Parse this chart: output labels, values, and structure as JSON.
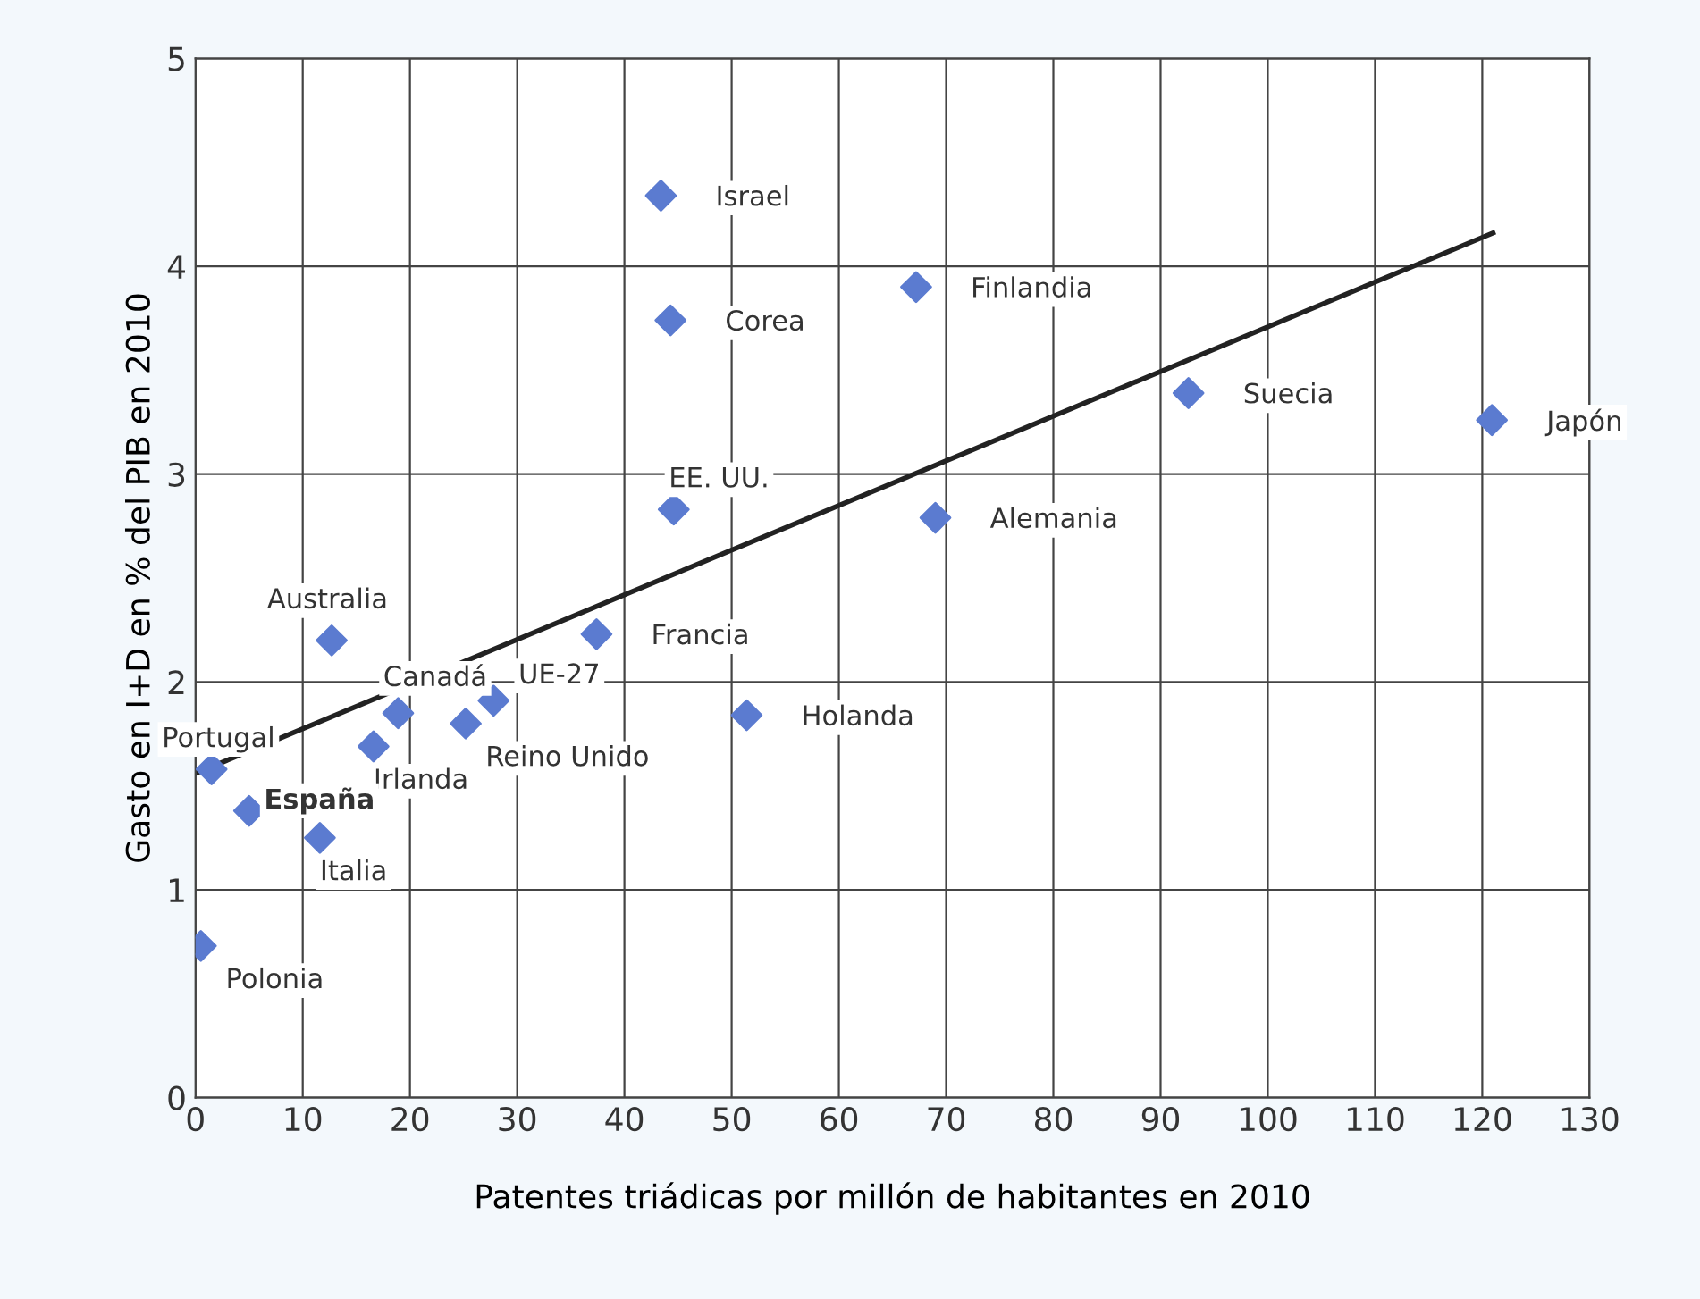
{
  "chart_data": {
    "type": "scatter",
    "xlabel": "Patentes triádicas por millón de habitantes en 2010",
    "ylabel": "Gasto en I+D en % del PIB en 2010",
    "xlim": [
      0,
      130
    ],
    "ylim": [
      0,
      5
    ],
    "xticks": [
      0,
      10,
      20,
      30,
      40,
      50,
      60,
      70,
      80,
      90,
      100,
      110,
      120,
      130
    ],
    "yticks": [
      0,
      1,
      2,
      3,
      4,
      5
    ],
    "grid": true,
    "legend": false,
    "series": [
      {
        "type": "scatter",
        "color": "#5b7bd0",
        "marker": "diamond",
        "x": [
          43.4,
          44.3,
          67.2,
          92.6,
          120.9,
          44.6,
          69.0,
          37.4,
          51.4,
          12.7,
          18.9,
          27.8,
          25.2,
          16.6,
          1.5,
          5.0,
          11.6,
          0.5
        ],
        "values": [
          4.34,
          3.74,
          3.9,
          3.39,
          3.26,
          2.83,
          2.79,
          2.23,
          1.84,
          2.2,
          1.85,
          1.91,
          1.8,
          1.69,
          1.58,
          1.38,
          1.25,
          0.73
        ]
      },
      {
        "type": "line",
        "color": "#222222",
        "marker": "none",
        "line_style": "solid",
        "x": [
          0,
          121
        ],
        "values": [
          1.56,
          4.16
        ]
      }
    ],
    "annotations": [
      {
        "text": "Israel",
        "x": 43.4,
        "y": 4.34
      },
      {
        "text": "Corea",
        "x": 44.3,
        "y": 3.74
      },
      {
        "text": "Finlandia",
        "x": 67.2,
        "y": 3.9
      },
      {
        "text": "Suecia",
        "x": 92.6,
        "y": 3.39
      },
      {
        "text": "Japón",
        "x": 120.9,
        "y": 3.26
      },
      {
        "text": "EE. UU.",
        "x": 44.6,
        "y": 2.83
      },
      {
        "text": "Alemania",
        "x": 69.0,
        "y": 2.79
      },
      {
        "text": "Francia",
        "x": 37.4,
        "y": 2.23
      },
      {
        "text": "Holanda",
        "x": 51.4,
        "y": 1.84
      },
      {
        "text": "Australia",
        "x": 12.7,
        "y": 2.2
      },
      {
        "text": "Canadá",
        "x": 18.9,
        "y": 1.85
      },
      {
        "text": "UE-27",
        "x": 27.8,
        "y": 1.91
      },
      {
        "text": "Reino Unido",
        "x": 25.2,
        "y": 1.8
      },
      {
        "text": "Irlanda",
        "x": 16.6,
        "y": 1.69
      },
      {
        "text": "Portugal",
        "x": 1.5,
        "y": 1.58
      },
      {
        "text": "España",
        "x": 5.0,
        "y": 1.38
      },
      {
        "text": "Italia",
        "x": 11.6,
        "y": 1.25
      },
      {
        "text": "Polonia",
        "x": 0.5,
        "y": 0.73
      }
    ]
  }
}
